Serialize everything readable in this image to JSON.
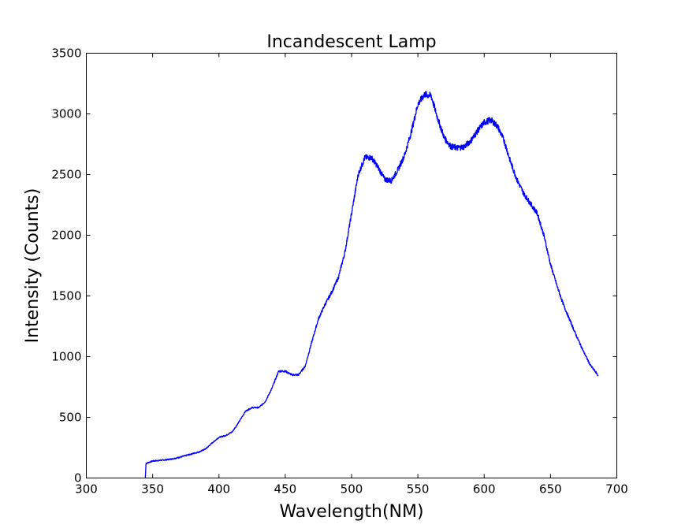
{
  "chart_data": {
    "type": "line",
    "title": "Incandescent Lamp",
    "xlabel": "Wavelength(NM)",
    "ylabel": "Intensity (Counts)",
    "xlim": [
      300,
      700
    ],
    "ylim": [
      0,
      3500
    ],
    "xticks": [
      300,
      350,
      400,
      450,
      500,
      550,
      600,
      650,
      700
    ],
    "yticks": [
      0,
      500,
      1000,
      1500,
      2000,
      2500,
      3000,
      3500
    ],
    "grid": false,
    "series": [
      {
        "name": "Incandescent Lamp",
        "color": "#0000ff",
        "x": [
          344.5,
          345,
          350,
          355,
          360,
          365,
          370,
          375,
          380,
          385,
          390,
          395,
          400,
          405,
          410,
          415,
          420,
          425,
          430,
          435,
          440,
          445,
          450,
          455,
          460,
          465,
          470,
          475,
          480,
          485,
          490,
          495,
          500,
          505,
          510,
          515,
          520,
          525,
          530,
          535,
          540,
          545,
          550,
          555,
          560,
          565,
          570,
          575,
          580,
          585,
          590,
          595,
          600,
          605,
          610,
          615,
          620,
          625,
          630,
          635,
          640,
          645,
          650,
          655,
          660,
          665,
          670,
          675,
          680,
          685,
          686
        ],
        "y": [
          0,
          120,
          140,
          145,
          150,
          158,
          170,
          185,
          200,
          215,
          240,
          290,
          335,
          350,
          380,
          460,
          550,
          580,
          580,
          630,
          740,
          880,
          880,
          850,
          850,
          920,
          1120,
          1310,
          1430,
          1530,
          1650,
          1860,
          2180,
          2500,
          2640,
          2640,
          2560,
          2460,
          2450,
          2540,
          2660,
          2850,
          3080,
          3160,
          3150,
          2960,
          2800,
          2730,
          2720,
          2730,
          2780,
          2860,
          2930,
          2950,
          2900,
          2780,
          2600,
          2450,
          2340,
          2260,
          2180,
          2000,
          1760,
          1580,
          1420,
          1290,
          1160,
          1040,
          930,
          860,
          840
        ]
      }
    ]
  }
}
